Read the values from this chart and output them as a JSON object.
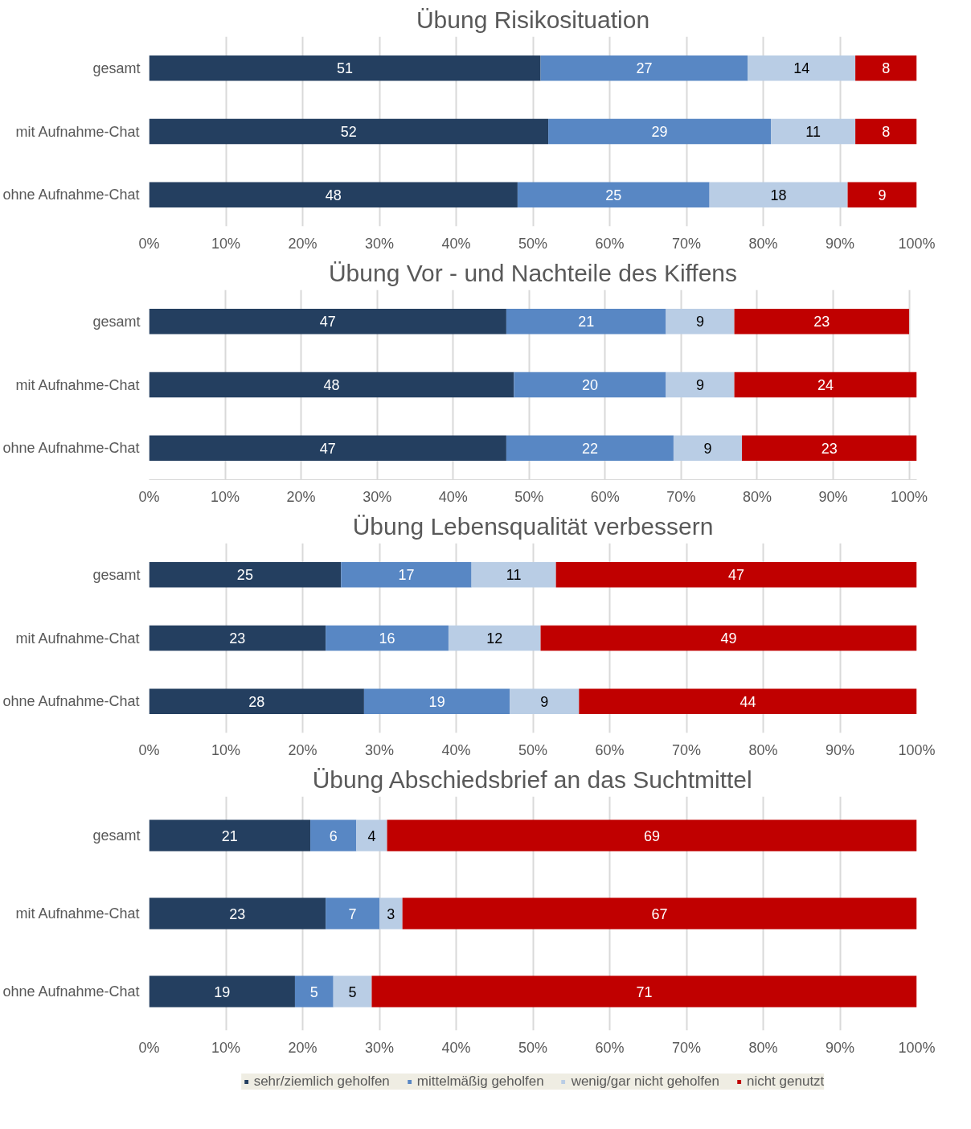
{
  "chart_data": [
    {
      "type": "bar",
      "orientation": "horizontal",
      "stacked": true,
      "data_labels": true,
      "grid": "x",
      "title": "Übung Risikosituation",
      "categories": [
        "gesamt",
        "mit Aufnahme-Chat",
        "ohne Aufnahme-Chat"
      ],
      "xlim": [
        0,
        100
      ],
      "xticks": [
        {
          "value": 0,
          "label": "0%"
        },
        {
          "value": 10,
          "label": "10%"
        },
        {
          "value": 20,
          "label": "20%"
        },
        {
          "value": 30,
          "label": "30%"
        },
        {
          "value": 40,
          "label": "40%"
        },
        {
          "value": 50,
          "label": "50%"
        },
        {
          "value": 60,
          "label": "60%"
        },
        {
          "value": 70,
          "label": "70%"
        },
        {
          "value": 80,
          "label": "80%"
        },
        {
          "value": 90,
          "label": "90%"
        },
        {
          "value": 100,
          "label": "100%"
        }
      ],
      "series": [
        {
          "color": "#243f60",
          "values": [
            51,
            52,
            48
          ]
        },
        {
          "color": "#5887c4",
          "values": [
            27,
            29,
            25
          ]
        },
        {
          "color": "#b9cde5",
          "values": [
            14,
            11,
            18
          ]
        },
        {
          "color": "#c00000",
          "values": [
            8,
            8,
            9
          ]
        }
      ]
    },
    {
      "type": "bar",
      "orientation": "horizontal",
      "stacked": true,
      "data_labels": true,
      "grid": "x",
      "title": "Übung Vor - und Nachteile des Kiffens",
      "categories": [
        "gesamt",
        "mit Aufnahme-Chat",
        "ohne Aufnahme-Chat"
      ],
      "xlim": [
        0,
        101
      ],
      "xticks": [
        {
          "value": 0,
          "label": "0%"
        },
        {
          "value": 10,
          "label": "10%"
        },
        {
          "value": 20,
          "label": "20%"
        },
        {
          "value": 30,
          "label": "30%"
        },
        {
          "value": 40,
          "label": "40%"
        },
        {
          "value": 50,
          "label": "50%"
        },
        {
          "value": 60,
          "label": "60%"
        },
        {
          "value": 70,
          "label": "70%"
        },
        {
          "value": 80,
          "label": "80%"
        },
        {
          "value": 90,
          "label": "90%"
        },
        {
          "value": 100,
          "label": "100%"
        }
      ],
      "series": [
        {
          "color": "#243f60",
          "values": [
            47,
            48,
            47
          ]
        },
        {
          "color": "#5887c4",
          "values": [
            21,
            20,
            22
          ]
        },
        {
          "color": "#b9cde5",
          "values": [
            9,
            9,
            9
          ]
        },
        {
          "color": "#c00000",
          "values": [
            23,
            24,
            23
          ]
        }
      ]
    },
    {
      "type": "bar",
      "orientation": "horizontal",
      "stacked": true,
      "data_labels": true,
      "grid": "x",
      "title": "Übung Lebensqualität verbessern",
      "categories": [
        "gesamt",
        "mit Aufnahme-Chat",
        "ohne Aufnahme-Chat"
      ],
      "xlim": [
        0,
        100
      ],
      "xticks": [
        {
          "value": 0,
          "label": "0%"
        },
        {
          "value": 10,
          "label": "10%"
        },
        {
          "value": 20,
          "label": "20%"
        },
        {
          "value": 30,
          "label": "30%"
        },
        {
          "value": 40,
          "label": "40%"
        },
        {
          "value": 50,
          "label": "50%"
        },
        {
          "value": 60,
          "label": "60%"
        },
        {
          "value": 70,
          "label": "70%"
        },
        {
          "value": 80,
          "label": "80%"
        },
        {
          "value": 90,
          "label": "90%"
        },
        {
          "value": 100,
          "label": "100%"
        }
      ],
      "series": [
        {
          "color": "#243f60",
          "values": [
            25,
            23,
            28
          ]
        },
        {
          "color": "#5887c4",
          "values": [
            17,
            16,
            19
          ]
        },
        {
          "color": "#b9cde5",
          "values": [
            11,
            12,
            9
          ]
        },
        {
          "color": "#c00000",
          "values": [
            47,
            49,
            44
          ]
        }
      ]
    },
    {
      "type": "bar",
      "orientation": "horizontal",
      "stacked": true,
      "data_labels": true,
      "grid": "x",
      "legend": "bottom",
      "title": "Übung Abschiedsbrief an das Suchtmittel",
      "categories": [
        "gesamt",
        "mit Aufnahme-Chat",
        "ohne Aufnahme-Chat"
      ],
      "xlim": [
        0,
        100
      ],
      "xticks": [
        {
          "value": 0,
          "label": "0%"
        },
        {
          "value": 10,
          "label": "10%"
        },
        {
          "value": 20,
          "label": "20%"
        },
        {
          "value": 30,
          "label": "30%"
        },
        {
          "value": 40,
          "label": "40%"
        },
        {
          "value": 50,
          "label": "50%"
        },
        {
          "value": 60,
          "label": "60%"
        },
        {
          "value": 70,
          "label": "70%"
        },
        {
          "value": 80,
          "label": "80%"
        },
        {
          "value": 90,
          "label": "90%"
        },
        {
          "value": 100,
          "label": "100%"
        }
      ],
      "series": [
        {
          "name": "sehr/ziemlich geholfen",
          "color": "#243f60",
          "values": [
            21,
            23,
            19
          ]
        },
        {
          "name": "mittelmäßig geholfen",
          "color": "#5887c4",
          "values": [
            6,
            7,
            5
          ]
        },
        {
          "name": "wenig/gar nicht geholfen",
          "color": "#b9cde5",
          "values": [
            4,
            3,
            5
          ]
        },
        {
          "name": "nicht genutzt",
          "color": "#c00000",
          "values": [
            69,
            67,
            71
          ]
        }
      ]
    }
  ]
}
